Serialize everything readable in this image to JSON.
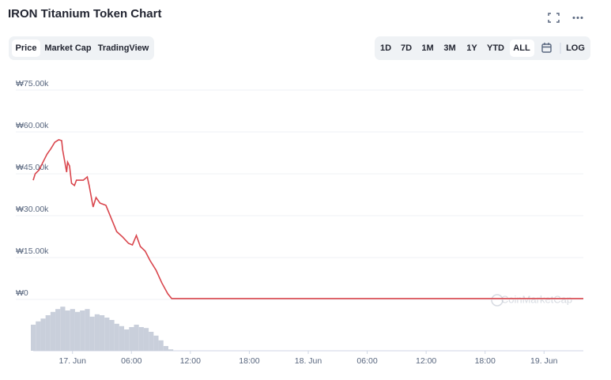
{
  "header": {
    "title": "IRON Titanium Token Chart"
  },
  "tabs": [
    "Price",
    "Market Cap",
    "TradingView"
  ],
  "ranges": [
    "1D",
    "7D",
    "1M",
    "3M",
    "1Y",
    "YTD",
    "ALL"
  ],
  "log_button": "LOG",
  "watermark": "CoinMarketCap",
  "chart_data": {
    "type": "line",
    "x": [
      -4.0,
      -3.8,
      -3.4,
      -3.0,
      -2.6,
      -2.2,
      -1.8,
      -1.4,
      -1.1,
      -1.0,
      -0.6,
      -0.5,
      -0.3,
      -0.1,
      0.2,
      0.4,
      1.1,
      1.5,
      1.7,
      2.1,
      2.4,
      2.8,
      3.4,
      3.9,
      4.5,
      5.1,
      5.7,
      6.1,
      6.5,
      6.9,
      7.4,
      7.9,
      8.5,
      9.1,
      9.7,
      10.1,
      11.1,
      52
    ],
    "series": [
      {
        "color": "#d9464d",
        "values": [
          42700,
          45000,
          46400,
          49200,
          52000,
          54000,
          56300,
          57200,
          56900,
          53500,
          45600,
          49200,
          47800,
          41600,
          40800,
          42700,
          42700,
          43900,
          40800,
          33100,
          36500,
          34500,
          33700,
          29400,
          24300,
          22400,
          20100,
          19500,
          22900,
          19000,
          17300,
          13900,
          10500,
          5900,
          2000,
          300,
          300,
          300
        ]
      }
    ],
    "xlim": [
      -4,
      52
    ],
    "xticks": [
      {
        "value": 0,
        "label": "17. Jun"
      },
      {
        "value": 6,
        "label": "06:00"
      },
      {
        "value": 12,
        "label": "12:00"
      },
      {
        "value": 18,
        "label": "18:00"
      },
      {
        "value": 24,
        "label": "18. Jun"
      },
      {
        "value": 30,
        "label": "06:00"
      },
      {
        "value": 36,
        "label": "12:00"
      },
      {
        "value": 42,
        "label": "18:00"
      },
      {
        "value": 48,
        "label": "19. Jun"
      }
    ],
    "ylim": [
      0,
      75000
    ],
    "yticks": [
      {
        "value": 0,
        "label": "₩0"
      },
      {
        "value": 15000,
        "label": "₩15.00k"
      },
      {
        "value": 30000,
        "label": "₩30.00k"
      },
      {
        "value": 45000,
        "label": "₩45.00k"
      },
      {
        "value": 60000,
        "label": "₩60.00k"
      },
      {
        "value": 75000,
        "label": "₩75.00k"
      }
    ],
    "grid": true,
    "volume": {
      "color": "#c9cfdb",
      "ylim": [
        0,
        100
      ],
      "x": [
        -4,
        -3.5,
        -3,
        -2.5,
        -2,
        -1.5,
        -1,
        -0.5,
        0,
        0.5,
        1,
        1.5,
        2,
        2.5,
        3,
        3.5,
        4,
        4.5,
        5,
        5.5,
        6,
        6.5,
        7,
        7.5,
        8,
        8.5,
        9,
        9.5,
        10
      ],
      "values": [
        55,
        62,
        68,
        75,
        82,
        88,
        93,
        85,
        88,
        82,
        85,
        88,
        72,
        77,
        75,
        70,
        65,
        57,
        52,
        45,
        50,
        55,
        50,
        48,
        40,
        32,
        22,
        10,
        3
      ]
    }
  }
}
